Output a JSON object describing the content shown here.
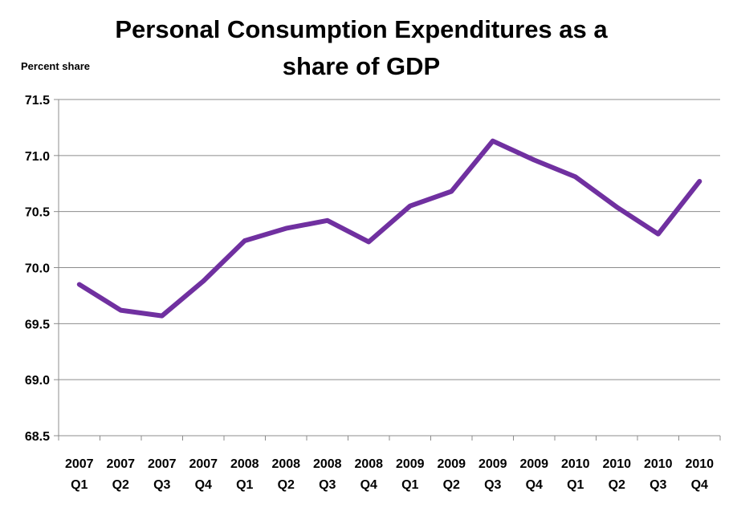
{
  "chart_data": {
    "type": "line",
    "title_lines": [
      "Personal Consumption Expenditures as a",
      "share of GDP"
    ],
    "ylabel": "Percent share",
    "xlabel": "",
    "categories": [
      [
        "2007",
        "Q1"
      ],
      [
        "2007",
        "Q2"
      ],
      [
        "2007",
        "Q3"
      ],
      [
        "2007",
        "Q4"
      ],
      [
        "2008",
        "Q1"
      ],
      [
        "2008",
        "Q2"
      ],
      [
        "2008",
        "Q3"
      ],
      [
        "2008",
        "Q4"
      ],
      [
        "2009",
        "Q1"
      ],
      [
        "2009",
        "Q2"
      ],
      [
        "2009",
        "Q3"
      ],
      [
        "2009",
        "Q4"
      ],
      [
        "2010",
        "Q1"
      ],
      [
        "2010",
        "Q2"
      ],
      [
        "2010",
        "Q3"
      ],
      [
        "2010",
        "Q4"
      ]
    ],
    "series": [
      {
        "values": [
          69.85,
          69.62,
          69.57,
          69.88,
          70.24,
          70.35,
          70.42,
          70.23,
          70.55,
          70.68,
          71.13,
          70.96,
          70.81,
          70.54,
          70.3,
          70.77
        ],
        "color": "#7030a0"
      }
    ],
    "ylim": [
      68.5,
      71.5
    ],
    "yticks": [
      "68.5",
      "69.0",
      "69.5",
      "70.0",
      "70.5",
      "71.0",
      "71.5"
    ],
    "grid": true,
    "legend": "none"
  }
}
